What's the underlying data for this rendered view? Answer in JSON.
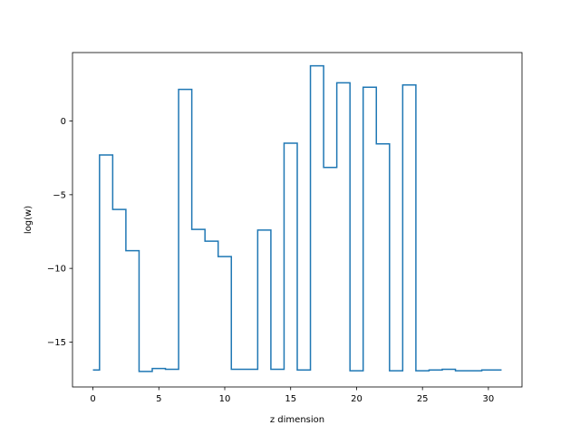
{
  "chart_data": {
    "type": "line",
    "drawstyle": "steps-mid",
    "title": "",
    "xlabel": "z dimension",
    "ylabel": "log(w)",
    "xlim": [
      -1.55,
      32.55
    ],
    "ylim": [
      -18.05,
      4.65
    ],
    "grid": false,
    "line_color": "#1f77b4",
    "x_ticks": [
      0,
      5,
      10,
      15,
      20,
      25,
      30
    ],
    "y_ticks": [
      -15,
      -10,
      -5,
      0
    ],
    "x_tick_labels": [
      "0",
      "5",
      "10",
      "15",
      "20",
      "25",
      "30"
    ],
    "y_tick_labels": [
      "−15",
      "−10",
      "−5",
      "0"
    ],
    "series": [
      {
        "x": [
          0,
          1,
          2,
          3,
          4,
          5,
          6,
          7,
          8,
          9,
          10,
          11,
          12,
          13,
          14,
          15,
          16,
          17,
          18,
          19,
          20,
          21,
          22,
          23,
          24,
          25,
          26,
          27,
          28,
          29,
          30,
          31
        ],
        "values": [
          -16.9,
          -2.3,
          -6.0,
          -8.8,
          -17.0,
          -16.8,
          -16.85,
          2.15,
          -7.35,
          -8.15,
          -9.2,
          -16.85,
          -16.85,
          -7.4,
          -16.85,
          -1.5,
          -16.9,
          3.75,
          -3.15,
          2.6,
          -16.95,
          2.3,
          -1.55,
          -16.95,
          2.45,
          -16.95,
          -16.9,
          -16.85,
          -16.95,
          -16.95,
          -16.9,
          -16.9
        ]
      }
    ]
  }
}
